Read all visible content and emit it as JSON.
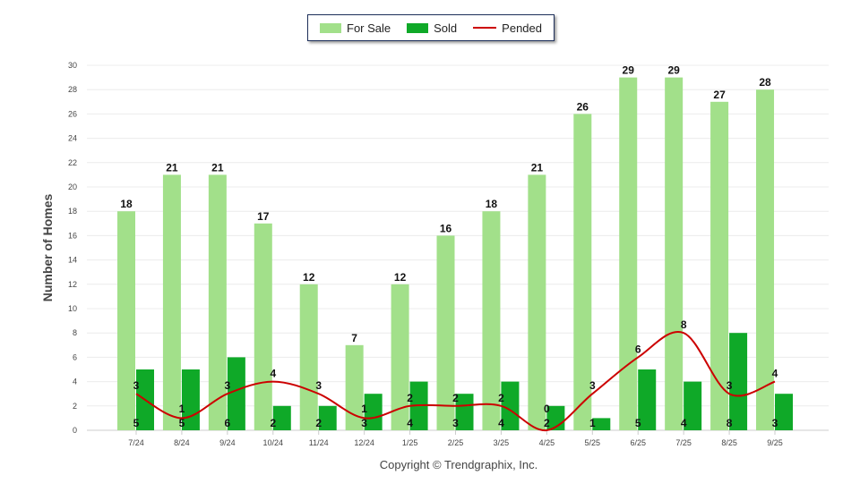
{
  "legend": {
    "for_sale": "For Sale",
    "sold": "Sold",
    "pended": "Pended"
  },
  "copyright": "Copyright © Trendgraphix, Inc.",
  "colors": {
    "for_sale": "#a2e08a",
    "sold": "#0fa928",
    "pended": "#cc0000"
  },
  "chart_data": {
    "type": "bar",
    "title": "",
    "xlabel": "",
    "ylabel": "Number of Homes",
    "ylim": [
      0,
      30
    ],
    "yticks": [
      0,
      2,
      4,
      6,
      8,
      10,
      12,
      14,
      16,
      18,
      20,
      22,
      24,
      26,
      28,
      30
    ],
    "grid": true,
    "legend_position": "top-center",
    "categories": [
      "7/24",
      "8/24",
      "9/24",
      "10/24",
      "11/24",
      "12/24",
      "1/25",
      "2/25",
      "3/25",
      "4/25",
      "5/25",
      "6/25",
      "7/25",
      "8/25",
      "9/25"
    ],
    "series": [
      {
        "name": "For Sale",
        "type": "bar",
        "values": [
          18,
          21,
          21,
          17,
          12,
          7,
          12,
          16,
          18,
          21,
          26,
          29,
          29,
          27,
          28
        ]
      },
      {
        "name": "Sold",
        "type": "bar",
        "values": [
          5,
          5,
          6,
          2,
          2,
          3,
          4,
          3,
          4,
          2,
          1,
          5,
          4,
          8,
          3
        ]
      },
      {
        "name": "Pended",
        "type": "line",
        "values": [
          3,
          1,
          3,
          4,
          3,
          1,
          2,
          2,
          2,
          0,
          3,
          6,
          8,
          3,
          4
        ]
      }
    ]
  }
}
